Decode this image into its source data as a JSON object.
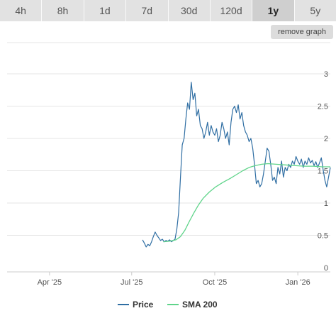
{
  "range_tabs": [
    {
      "label": "4h",
      "active": false
    },
    {
      "label": "8h",
      "active": false
    },
    {
      "label": "1d",
      "active": false
    },
    {
      "label": "7d",
      "active": false
    },
    {
      "label": "30d",
      "active": false
    },
    {
      "label": "120d",
      "active": false
    },
    {
      "label": "1y",
      "active": true
    },
    {
      "label": "5y",
      "active": false
    }
  ],
  "remove_graph_label": "remove graph",
  "colors": {
    "price": "#2f6ea3",
    "sma": "#5fd48a",
    "grid": "#e6e6e6",
    "active_tab": "#cfcfcf"
  },
  "chart_data": {
    "type": "line",
    "title": "",
    "xlabel": "",
    "ylabel": "",
    "x_range": [
      "2025-02-13",
      "2026-02-06"
    ],
    "ylim": [
      0,
      3
    ],
    "y_ticks": [
      "0",
      "0.5",
      "1",
      "1.5",
      "2",
      "2.5",
      "3"
    ],
    "x_ticks": [
      {
        "label": "Apr '25",
        "date": "2025-04-01"
      },
      {
        "label": "Jul '25",
        "date": "2025-07-01"
      },
      {
        "label": "Oct '25",
        "date": "2025-10-01"
      },
      {
        "label": "Jan '26",
        "date": "2026-01-01"
      }
    ],
    "grid": true,
    "legend": "bottom",
    "series": [
      {
        "name": "Price",
        "x": [
          "2025-07-13",
          "2025-07-15",
          "2025-07-17",
          "2025-07-19",
          "2025-07-21",
          "2025-07-23",
          "2025-07-25",
          "2025-07-27",
          "2025-07-29",
          "2025-07-31",
          "2025-08-02",
          "2025-08-04",
          "2025-08-06",
          "2025-08-08",
          "2025-08-10",
          "2025-08-12",
          "2025-08-14",
          "2025-08-16",
          "2025-08-18",
          "2025-08-20",
          "2025-08-22",
          "2025-08-24",
          "2025-08-26",
          "2025-08-28",
          "2025-08-30",
          "2025-09-01",
          "2025-09-03",
          "2025-09-05",
          "2025-09-07",
          "2025-09-09",
          "2025-09-11",
          "2025-09-13",
          "2025-09-15",
          "2025-09-17",
          "2025-09-19",
          "2025-09-21",
          "2025-09-23",
          "2025-09-25",
          "2025-09-27",
          "2025-09-29",
          "2025-10-01",
          "2025-10-03",
          "2025-10-05",
          "2025-10-07",
          "2025-10-09",
          "2025-10-11",
          "2025-10-13",
          "2025-10-15",
          "2025-10-17",
          "2025-10-19",
          "2025-10-21",
          "2025-10-23",
          "2025-10-25",
          "2025-10-27",
          "2025-10-29",
          "2025-10-31",
          "2025-11-02",
          "2025-11-04",
          "2025-11-06",
          "2025-11-08",
          "2025-11-10",
          "2025-11-12",
          "2025-11-14",
          "2025-11-16",
          "2025-11-18",
          "2025-11-20",
          "2025-11-22",
          "2025-11-24",
          "2025-11-26",
          "2025-11-28",
          "2025-11-30",
          "2025-12-02",
          "2025-12-04",
          "2025-12-06",
          "2025-12-08",
          "2025-12-10",
          "2025-12-12",
          "2025-12-14",
          "2025-12-16",
          "2025-12-18",
          "2025-12-20",
          "2025-12-22",
          "2025-12-24",
          "2025-12-26",
          "2025-12-28",
          "2025-12-30",
          "2026-01-01",
          "2026-01-03",
          "2026-01-05",
          "2026-01-07",
          "2026-01-09",
          "2026-01-11",
          "2026-01-13",
          "2026-01-15",
          "2026-01-17",
          "2026-01-19",
          "2026-01-21",
          "2026-01-23",
          "2026-01-25",
          "2026-01-27",
          "2026-01-29",
          "2026-01-31",
          "2026-02-02",
          "2026-02-04",
          "2026-02-06"
        ],
        "y": [
          0.43,
          0.38,
          0.32,
          0.36,
          0.34,
          0.4,
          0.48,
          0.55,
          0.5,
          0.46,
          0.42,
          0.44,
          0.4,
          0.42,
          0.41,
          0.43,
          0.4,
          0.42,
          0.44,
          0.6,
          0.85,
          1.4,
          1.9,
          2.0,
          2.3,
          2.55,
          2.45,
          2.87,
          2.6,
          2.7,
          2.35,
          2.45,
          2.2,
          2.15,
          2.0,
          2.1,
          2.25,
          2.05,
          2.2,
          2.1,
          2.05,
          2.15,
          1.95,
          2.05,
          2.25,
          2.15,
          2.0,
          2.1,
          1.9,
          2.25,
          2.45,
          2.5,
          2.4,
          2.52,
          2.3,
          2.4,
          2.2,
          2.1,
          2.05,
          1.95,
          2.0,
          1.85,
          1.6,
          1.3,
          1.35,
          1.25,
          1.3,
          1.45,
          1.65,
          1.85,
          1.8,
          1.6,
          1.35,
          1.4,
          1.3,
          1.55,
          1.45,
          1.65,
          1.4,
          1.55,
          1.5,
          1.6,
          1.55,
          1.65,
          1.6,
          1.72,
          1.65,
          1.6,
          1.68,
          1.55,
          1.65,
          1.6,
          1.7,
          1.62,
          1.66,
          1.58,
          1.64,
          1.55,
          1.62,
          1.7,
          1.52,
          1.35,
          1.25,
          1.4,
          1.55
        ]
      },
      {
        "name": "SMA 200",
        "x": [
          "2025-08-05",
          "2025-08-12",
          "2025-08-19",
          "2025-08-24",
          "2025-08-29",
          "2025-09-03",
          "2025-09-08",
          "2025-09-13",
          "2025-09-18",
          "2025-09-25",
          "2025-10-02",
          "2025-10-10",
          "2025-10-18",
          "2025-10-25",
          "2025-11-01",
          "2025-11-08",
          "2025-11-15",
          "2025-11-22",
          "2025-11-29",
          "2025-12-08",
          "2025-12-18",
          "2025-12-28",
          "2026-01-08",
          "2026-01-18",
          "2026-01-28",
          "2026-02-06"
        ],
        "y": [
          0.4,
          0.41,
          0.43,
          0.48,
          0.58,
          0.72,
          0.85,
          0.97,
          1.07,
          1.17,
          1.25,
          1.32,
          1.38,
          1.44,
          1.5,
          1.55,
          1.58,
          1.6,
          1.61,
          1.6,
          1.59,
          1.58,
          1.57,
          1.57,
          1.56,
          1.56
        ]
      }
    ]
  }
}
